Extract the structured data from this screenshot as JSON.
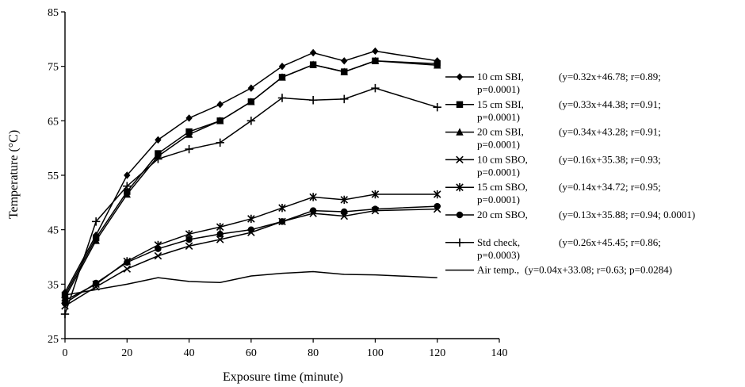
{
  "chart_data": {
    "type": "line",
    "xlabel": "Exposure time (minute)",
    "ylabel": "Temperature (°C)",
    "xlim": [
      0,
      140
    ],
    "ylim": [
      25,
      85
    ],
    "x_ticks": [
      "0",
      "20",
      "40",
      "60",
      "80",
      "100",
      "120",
      "140"
    ],
    "y_ticks": [
      "25",
      "35",
      "45",
      "55",
      "65",
      "75",
      "85"
    ],
    "grid": false,
    "legend_position": "right",
    "series": [
      {
        "name": "10 cm SBI,",
        "equation": "(y=0.32x+46.78; r=0.89;",
        "equation2": "p=0.0001)",
        "marker": "diamond",
        "x": [
          0,
          10,
          20,
          30,
          40,
          50,
          60,
          70,
          80,
          90,
          100,
          120
        ],
        "y": [
          33.5,
          44,
          55,
          61.5,
          65.5,
          68,
          71,
          75,
          77.5,
          76,
          77.8,
          76
        ]
      },
      {
        "name": "15 cm SBI,",
        "equation": "(y=0.33x+44.38; r=0.91;",
        "equation2": "p=0.0001)",
        "marker": "square",
        "x": [
          0,
          10,
          20,
          30,
          40,
          50,
          60,
          70,
          80,
          90,
          100,
          120
        ],
        "y": [
          33,
          43.5,
          52,
          59,
          63,
          65,
          68.5,
          73,
          75.3,
          74,
          76,
          75.5
        ]
      },
      {
        "name": "20 cm SBI,",
        "equation": "(y=0.34x+43.28; r=0.91;",
        "equation2": "p=0.0001)",
        "marker": "triangle",
        "x": [
          0,
          10,
          20,
          30,
          40,
          50,
          60,
          70,
          80,
          90,
          100,
          120
        ],
        "y": [
          32.5,
          43,
          51.5,
          58.5,
          62.5,
          65,
          68.5,
          73,
          75.3,
          74,
          76,
          75.2
        ]
      },
      {
        "name": "10 cm SBO,",
        "equation": "(y=0.16x+35.38; r=0.93;",
        "equation2": "p=0.0001)",
        "marker": "x",
        "x": [
          0,
          10,
          20,
          30,
          40,
          50,
          60,
          70,
          80,
          90,
          100,
          120
        ],
        "y": [
          31,
          34.5,
          37.8,
          40.2,
          42,
          43.2,
          44.5,
          46.5,
          48,
          47.5,
          48.5,
          48.8
        ]
      },
      {
        "name": "15 cm SBO,",
        "equation": "(y=0.14x+34.72; r=0.95;",
        "equation2": "p=0.0001)",
        "marker": "asterisk",
        "x": [
          0,
          10,
          20,
          30,
          40,
          50,
          60,
          70,
          80,
          90,
          100,
          120
        ],
        "y": [
          32,
          35,
          39.2,
          42.2,
          44.2,
          45.5,
          47,
          49,
          51,
          50.5,
          51.5,
          51.5
        ]
      },
      {
        "name": "20 cm SBO,",
        "equation": "(y=0.13x+35.88; r=0.94; 0.0001)",
        "equation2": "",
        "marker": "circle",
        "x": [
          0,
          10,
          20,
          30,
          40,
          50,
          60,
          70,
          80,
          90,
          100,
          120
        ],
        "y": [
          31.5,
          35.2,
          39,
          41.5,
          43.2,
          44.2,
          45,
          46.5,
          48.5,
          48.3,
          48.8,
          49.3
        ]
      },
      {
        "name": "Std check,",
        "equation": "(y=0.26x+45.45; r=0.86;",
        "equation2": "p=0.0003)",
        "marker": "plus",
        "x": [
          0,
          10,
          20,
          30,
          40,
          50,
          60,
          70,
          80,
          90,
          100,
          120
        ],
        "y": [
          29.5,
          46.5,
          53,
          58,
          59.8,
          61,
          65,
          69.2,
          68.8,
          69,
          71,
          67.5
        ]
      },
      {
        "name": "Air temp.,",
        "equation": "(y=0.04x+33.08; r=0.63; p=0.0284)",
        "equation2": "",
        "marker": "none",
        "x": [
          0,
          10,
          20,
          30,
          40,
          50,
          60,
          70,
          80,
          90,
          100,
          120
        ],
        "y": [
          33,
          34,
          35,
          36.2,
          35.5,
          35.3,
          36.5,
          37,
          37.3,
          36.8,
          36.7,
          36.2
        ]
      }
    ]
  }
}
